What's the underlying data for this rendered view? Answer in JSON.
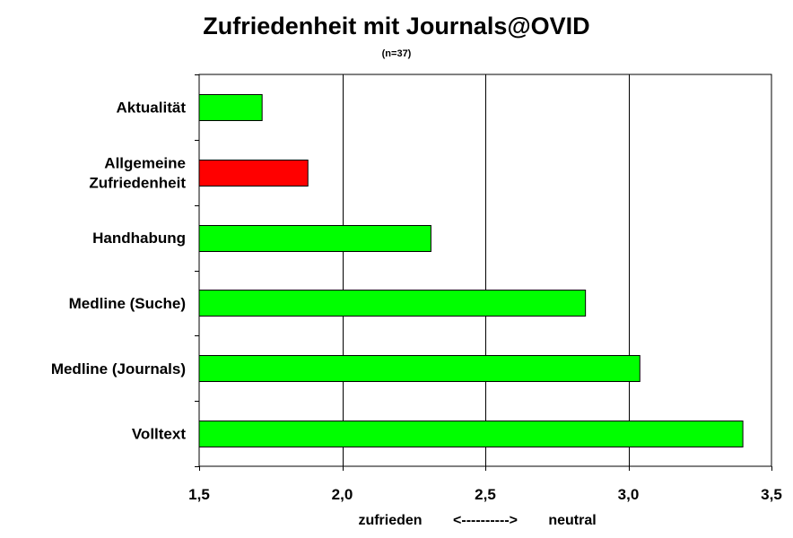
{
  "chart_data": {
    "type": "bar",
    "orientation": "horizontal",
    "title": "Zufriedenheit mit Journals@OVID",
    "subtitle": "(n=37)",
    "categories": [
      [
        "Aktualität"
      ],
      [
        "Allgemeine",
        "Zufriedenheit"
      ],
      [
        "Handhabung"
      ],
      [
        "Medline (Suche)"
      ],
      [
        "Medline (Journals)"
      ],
      [
        "Volltext"
      ]
    ],
    "values": [
      1.72,
      1.88,
      2.31,
      2.85,
      3.04,
      3.4
    ],
    "bar_colors": [
      "#00ff00",
      "#ff0000",
      "#00ff00",
      "#00ff00",
      "#00ff00",
      "#00ff00"
    ],
    "xlim": [
      1.5,
      3.5
    ],
    "xticks": [
      1.5,
      2.0,
      2.5,
      3.0,
      3.5
    ],
    "xtick_labels": [
      "1,5",
      "2,0",
      "2,5",
      "3,0",
      "3,5"
    ],
    "xlabel": {
      "left": "zufrieden",
      "arrow": "<---------->",
      "right": "neutral"
    },
    "grid": "vertical major gridlines",
    "legend": "none"
  }
}
